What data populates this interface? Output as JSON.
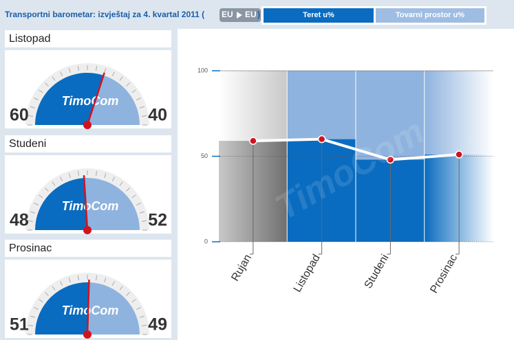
{
  "header": {
    "title": "Transportni barometar: izvještaj za 4. kvartal 2011 (",
    "route": [
      "EU",
      "EU"
    ],
    "close": ")",
    "tabs": [
      "Teret u%",
      "Tovarni prostor u%"
    ]
  },
  "brand": "TimoCom",
  "chart_data": [
    {
      "type": "area-line",
      "categories": [
        "Rujan",
        "Listopad",
        "Studeni",
        "Prosinac"
      ],
      "values": [
        59,
        60,
        48,
        51
      ],
      "color": "#0a6cc0",
      "upper_color": "#8fb3df",
      "line_color": "#ffffff",
      "point_color": "#d0141e",
      "ylim": [
        0,
        100
      ],
      "yticks": [
        0,
        50,
        100
      ],
      "grid": true
    },
    {
      "type": "gauge",
      "title": "Listopad",
      "values": [
        60,
        40
      ],
      "colors": [
        "#0a6cc0",
        "#8fb3df"
      ]
    },
    {
      "type": "gauge",
      "title": "Studeni",
      "values": [
        48,
        52
      ],
      "colors": [
        "#0a6cc0",
        "#8fb3df"
      ]
    },
    {
      "type": "gauge",
      "title": "Prosinac",
      "values": [
        51,
        49
      ],
      "colors": [
        "#0a6cc0",
        "#8fb3df"
      ]
    }
  ]
}
